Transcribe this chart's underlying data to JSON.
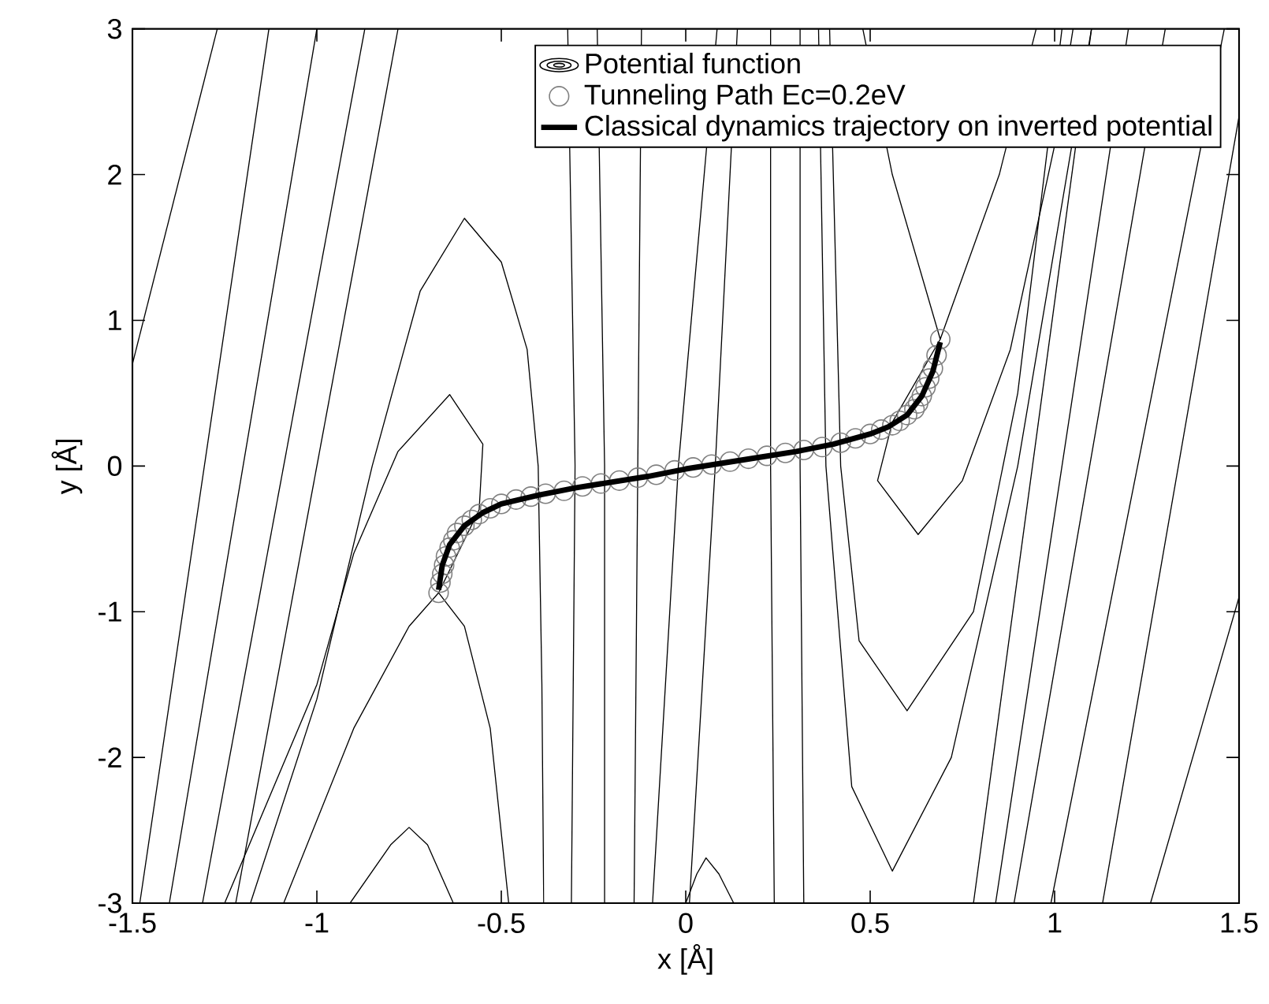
{
  "chart_data": {
    "type": "line",
    "xlabel": "x   [Å]",
    "ylabel": "y   [Å]",
    "xlim": [
      -1.5,
      1.5
    ],
    "ylim": [
      -3,
      3
    ],
    "xticks": [
      -1.5,
      -1,
      -0.5,
      0,
      0.5,
      1,
      1.5
    ],
    "yticks": [
      -3,
      -2,
      -1,
      0,
      1,
      2,
      3
    ],
    "legend": "top right",
    "marker": "none",
    "series": [
      {
        "name": "Potential function",
        "color": "#000000",
        "x": [
          -1.18,
          -1.0,
          -0.85,
          -0.72,
          -0.6,
          -0.5,
          -0.43,
          -0.4,
          -0.39,
          -0.385
        ],
        "values": [
          -3,
          -1.6,
          0,
          1.2,
          1.7,
          1.4,
          0.8,
          0,
          -1.5,
          -3
        ]
      },
      {
        "color": "#000000",
        "type": "line",
        "x": [
          -1.25,
          -1.0,
          -0.9,
          -0.78,
          -0.64,
          -0.55,
          -0.56,
          -0.67,
          -0.75,
          -0.9,
          -1.09
        ],
        "values": [
          -3,
          -1.5,
          -0.6,
          0.1,
          0.49,
          0.15,
          -0.3,
          -0.87,
          -1.1,
          -1.8,
          -3
        ]
      },
      {
        "color": "#000000",
        "type": "line",
        "x": [
          -0.67,
          -0.6,
          -0.53,
          -0.48
        ],
        "values": [
          -0.87,
          -1.1,
          -1.8,
          -3
        ]
      },
      {
        "color": "#000000",
        "type": "line",
        "x": [
          -0.91,
          -0.8,
          -0.75,
          -0.7,
          -0.63
        ],
        "values": [
          -3,
          -2.6,
          -2.48,
          -2.6,
          -3
        ]
      },
      {
        "color": "#000000",
        "type": "line",
        "x": [
          -1.5,
          -1.27
        ],
        "values": [
          0.7,
          3
        ]
      },
      {
        "color": "#000000",
        "type": "line",
        "x": [
          -1.48,
          -1.13
        ],
        "values": [
          -3,
          3
        ]
      },
      {
        "color": "#000000",
        "type": "line",
        "x": [
          -1.4,
          -1.0
        ],
        "values": [
          -3,
          3
        ]
      },
      {
        "color": "#000000",
        "type": "line",
        "x": [
          -1.31,
          -0.87
        ],
        "values": [
          -3,
          3
        ]
      },
      {
        "color": "#000000",
        "type": "line",
        "x": [
          -1.22,
          -0.78
        ],
        "values": [
          -3,
          3
        ]
      },
      {
        "color": "#000000",
        "type": "line",
        "x": [
          -0.31,
          -0.3,
          -0.32
        ],
        "values": [
          -3,
          0,
          3
        ]
      },
      {
        "color": "#000000",
        "type": "line",
        "x": [
          -0.22,
          -0.22,
          -0.24
        ],
        "values": [
          -3,
          0,
          3
        ]
      },
      {
        "color": "#000000",
        "type": "line",
        "x": [
          -0.14,
          -0.13,
          -0.12
        ],
        "values": [
          -3,
          0,
          3
        ]
      },
      {
        "color": "#000000",
        "type": "line",
        "x": [
          -0.09,
          -0.02,
          0.085
        ],
        "values": [
          -3,
          0,
          3
        ]
      },
      {
        "color": "#000000",
        "type": "line",
        "x": [
          0.01,
          0.08,
          0.14
        ],
        "values": [
          -3,
          0,
          3
        ]
      },
      {
        "color": "#000000",
        "type": "line",
        "x": [
          0.24,
          0.23,
          0.23
        ],
        "values": [
          -3,
          0,
          3
        ]
      },
      {
        "color": "#000000",
        "type": "line",
        "x": [
          0.32,
          0.31,
          0.31
        ],
        "values": [
          -3,
          0,
          3
        ]
      },
      {
        "color": "#000000",
        "type": "line",
        "x": [
          0.0,
          0.03,
          0.055,
          0.09,
          0.13
        ],
        "values": [
          -3,
          -2.8,
          -2.69,
          -2.8,
          -3
        ]
      },
      {
        "color": "#000000",
        "type": "line",
        "x": [
          0.48,
          0.56,
          0.69,
          0.85,
          0.95
        ],
        "values": [
          3,
          2,
          0.87,
          2,
          3
        ]
      },
      {
        "color": "#000000",
        "type": "line",
        "x": [
          0.69,
          0.56,
          0.52,
          0.63,
          0.75,
          0.88,
          1.0,
          1.05
        ],
        "values": [
          0.87,
          0.3,
          -0.1,
          -0.47,
          -0.1,
          0.8,
          2.2,
          3
        ]
      },
      {
        "color": "#000000",
        "type": "line",
        "x": [
          0.39,
          0.42,
          0.47,
          0.6,
          0.78,
          0.9,
          1.02
        ],
        "values": [
          3,
          0,
          -1.2,
          -1.68,
          -1.0,
          0.5,
          3
        ]
      },
      {
        "color": "#000000",
        "type": "line",
        "x": [
          0.36,
          0.38,
          0.45,
          0.56,
          0.72,
          0.9,
          1.1
        ],
        "values": [
          3,
          0,
          -2.2,
          -2.78,
          -2.0,
          0,
          3
        ]
      },
      {
        "color": "#000000",
        "type": "line",
        "x": [
          0.78,
          1.1
        ],
        "values": [
          -3,
          3
        ]
      },
      {
        "color": "#000000",
        "type": "line",
        "x": [
          0.84,
          1.2
        ],
        "values": [
          -3,
          3
        ]
      },
      {
        "color": "#000000",
        "type": "line",
        "x": [
          0.89,
          1.3
        ],
        "values": [
          -3,
          3
        ]
      },
      {
        "color": "#000000",
        "type": "line",
        "x": [
          0.99,
          1.46
        ],
        "values": [
          -3,
          3
        ]
      },
      {
        "color": "#000000",
        "type": "line",
        "x": [
          1.13,
          1.5
        ],
        "values": [
          -3,
          2.4
        ]
      },
      {
        "color": "#000000",
        "type": "line",
        "x": [
          1.26,
          1.5
        ],
        "values": [
          -3,
          -0.9
        ]
      },
      {
        "name": "Tunneling Path Ec=0.2eV",
        "color": "#808080",
        "type": "scatter",
        "marker": "circle",
        "x": [
          -0.67,
          -0.665,
          -0.66,
          -0.655,
          -0.65,
          -0.64,
          -0.63,
          -0.62,
          -0.6,
          -0.58,
          -0.56,
          -0.53,
          -0.5,
          -0.46,
          -0.42,
          -0.38,
          -0.33,
          -0.28,
          -0.23,
          -0.18,
          -0.13,
          -0.08,
          -0.03,
          0.02,
          0.07,
          0.12,
          0.17,
          0.22,
          0.27,
          0.32,
          0.37,
          0.42,
          0.46,
          0.5,
          0.53,
          0.56,
          0.58,
          0.6,
          0.62,
          0.63,
          0.64,
          0.65,
          0.66,
          0.67,
          0.68,
          0.69
        ],
        "values": [
          -0.87,
          -0.8,
          -0.74,
          -0.68,
          -0.62,
          -0.56,
          -0.51,
          -0.46,
          -0.41,
          -0.37,
          -0.33,
          -0.29,
          -0.26,
          -0.23,
          -0.21,
          -0.19,
          -0.17,
          -0.14,
          -0.12,
          -0.1,
          -0.08,
          -0.06,
          -0.03,
          -0.01,
          0.01,
          0.03,
          0.05,
          0.07,
          0.09,
          0.11,
          0.13,
          0.16,
          0.19,
          0.22,
          0.25,
          0.28,
          0.31,
          0.35,
          0.39,
          0.43,
          0.48,
          0.54,
          0.6,
          0.67,
          0.76,
          0.87
        ]
      },
      {
        "name": "Classical dynamics trajectory on inverted potential",
        "color": "#000000",
        "x": [
          -0.67,
          -0.66,
          -0.64,
          -0.6,
          -0.55,
          -0.5,
          -0.4,
          -0.3,
          -0.2,
          -0.1,
          0,
          0.1,
          0.2,
          0.3,
          0.4,
          0.5,
          0.55,
          0.6,
          0.64,
          0.67,
          0.69
        ],
        "values": [
          -0.85,
          -0.68,
          -0.54,
          -0.41,
          -0.32,
          -0.26,
          -0.2,
          -0.15,
          -0.11,
          -0.07,
          -0.02,
          0.02,
          0.06,
          0.1,
          0.15,
          0.22,
          0.27,
          0.35,
          0.48,
          0.65,
          0.85
        ]
      }
    ]
  }
}
